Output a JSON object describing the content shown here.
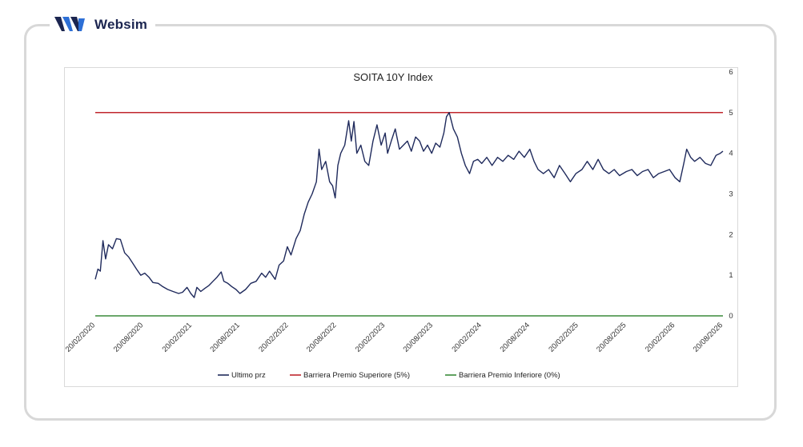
{
  "brand": {
    "name": "Websim",
    "logo_icon": "websim-logo-icon"
  },
  "chart_data": {
    "type": "line",
    "title": "SOITA 10Y Index",
    "xlabel": "",
    "ylabel": "",
    "x_range": [
      "2020-02-20",
      "2026-08-20"
    ],
    "ylim": [
      0,
      6
    ],
    "y_axis_position": "right",
    "y_ticks": [
      "0",
      "1",
      "2",
      "3",
      "4",
      "5",
      "6"
    ],
    "x_tick_labels": [
      "20/02/2020",
      "20/08/2020",
      "20/02/2021",
      "20/08/2021",
      "20/02/2022",
      "20/08/2022",
      "20/02/2023",
      "20/08/2023",
      "20/02/2024",
      "20/08/2024",
      "20/02/2025",
      "20/08/2025",
      "20/02/2026",
      "20/08/2026"
    ],
    "x_tick_rotation": "-45deg",
    "grid": false,
    "legend_position": "bottom",
    "series": [
      {
        "name": "Ultimo prz",
        "color": "#1f2a5c",
        "points": [
          [
            "2020-02-20",
            0.9
          ],
          [
            "2020-03-01",
            1.15
          ],
          [
            "2020-03-10",
            1.1
          ],
          [
            "2020-03-20",
            1.85
          ],
          [
            "2020-03-30",
            1.4
          ],
          [
            "2020-04-10",
            1.75
          ],
          [
            "2020-04-25",
            1.65
          ],
          [
            "2020-05-10",
            1.9
          ],
          [
            "2020-05-25",
            1.88
          ],
          [
            "2020-06-10",
            1.55
          ],
          [
            "2020-06-25",
            1.45
          ],
          [
            "2020-07-10",
            1.3
          ],
          [
            "2020-07-25",
            1.15
          ],
          [
            "2020-08-10",
            1.0
          ],
          [
            "2020-08-25",
            1.05
          ],
          [
            "2020-09-10",
            0.95
          ],
          [
            "2020-09-25",
            0.82
          ],
          [
            "2020-10-15",
            0.8
          ],
          [
            "2020-11-01",
            0.72
          ],
          [
            "2020-11-20",
            0.65
          ],
          [
            "2020-12-10",
            0.6
          ],
          [
            "2020-12-31",
            0.55
          ],
          [
            "2021-01-15",
            0.58
          ],
          [
            "2021-02-01",
            0.7
          ],
          [
            "2021-02-15",
            0.55
          ],
          [
            "2021-02-28",
            0.45
          ],
          [
            "2021-03-10",
            0.7
          ],
          [
            "2021-03-25",
            0.6
          ],
          [
            "2021-04-10",
            0.68
          ],
          [
            "2021-04-25",
            0.75
          ],
          [
            "2021-05-10",
            0.85
          ],
          [
            "2021-05-25",
            0.95
          ],
          [
            "2021-06-10",
            1.08
          ],
          [
            "2021-06-20",
            0.85
          ],
          [
            "2021-07-05",
            0.8
          ],
          [
            "2021-07-20",
            0.72
          ],
          [
            "2021-08-05",
            0.65
          ],
          [
            "2021-08-20",
            0.55
          ],
          [
            "2021-09-10",
            0.65
          ],
          [
            "2021-09-30",
            0.8
          ],
          [
            "2021-10-20",
            0.85
          ],
          [
            "2021-11-10",
            1.05
          ],
          [
            "2021-11-25",
            0.95
          ],
          [
            "2021-12-10",
            1.1
          ],
          [
            "2021-12-31",
            0.9
          ],
          [
            "2022-01-15",
            1.25
          ],
          [
            "2022-02-01",
            1.35
          ],
          [
            "2022-02-15",
            1.7
          ],
          [
            "2022-03-01",
            1.5
          ],
          [
            "2022-03-20",
            1.9
          ],
          [
            "2022-04-05",
            2.1
          ],
          [
            "2022-04-20",
            2.5
          ],
          [
            "2022-05-05",
            2.8
          ],
          [
            "2022-05-20",
            3.0
          ],
          [
            "2022-06-05",
            3.3
          ],
          [
            "2022-06-15",
            4.1
          ],
          [
            "2022-06-25",
            3.6
          ],
          [
            "2022-07-10",
            3.8
          ],
          [
            "2022-07-25",
            3.3
          ],
          [
            "2022-08-05",
            3.2
          ],
          [
            "2022-08-15",
            2.9
          ],
          [
            "2022-08-25",
            3.7
          ],
          [
            "2022-09-05",
            4.0
          ],
          [
            "2022-09-20",
            4.2
          ],
          [
            "2022-10-05",
            4.8
          ],
          [
            "2022-10-15",
            4.3
          ],
          [
            "2022-10-25",
            4.78
          ],
          [
            "2022-11-05",
            4.0
          ],
          [
            "2022-11-20",
            4.2
          ],
          [
            "2022-12-05",
            3.8
          ],
          [
            "2022-12-20",
            3.7
          ],
          [
            "2023-01-05",
            4.3
          ],
          [
            "2023-01-20",
            4.7
          ],
          [
            "2023-02-05",
            4.2
          ],
          [
            "2023-02-20",
            4.5
          ],
          [
            "2023-03-01",
            4.0
          ],
          [
            "2023-03-15",
            4.3
          ],
          [
            "2023-03-30",
            4.6
          ],
          [
            "2023-04-15",
            4.1
          ],
          [
            "2023-04-30",
            4.2
          ],
          [
            "2023-05-15",
            4.3
          ],
          [
            "2023-05-30",
            4.05
          ],
          [
            "2023-06-15",
            4.4
          ],
          [
            "2023-06-30",
            4.3
          ],
          [
            "2023-07-15",
            4.05
          ],
          [
            "2023-07-30",
            4.2
          ],
          [
            "2023-08-15",
            4.0
          ],
          [
            "2023-08-30",
            4.25
          ],
          [
            "2023-09-15",
            4.15
          ],
          [
            "2023-09-30",
            4.5
          ],
          [
            "2023-10-10",
            4.9
          ],
          [
            "2023-10-20",
            5.0
          ],
          [
            "2023-11-05",
            4.6
          ],
          [
            "2023-11-20",
            4.4
          ],
          [
            "2023-12-05",
            4.0
          ],
          [
            "2023-12-20",
            3.7
          ],
          [
            "2024-01-05",
            3.5
          ],
          [
            "2024-01-20",
            3.8
          ],
          [
            "2024-02-05",
            3.85
          ],
          [
            "2024-02-20",
            3.75
          ],
          [
            "2024-03-10",
            3.9
          ],
          [
            "2024-03-30",
            3.7
          ],
          [
            "2024-04-20",
            3.9
          ],
          [
            "2024-05-10",
            3.8
          ],
          [
            "2024-05-30",
            3.95
          ],
          [
            "2024-06-20",
            3.85
          ],
          [
            "2024-07-10",
            4.05
          ],
          [
            "2024-07-30",
            3.9
          ],
          [
            "2024-08-20",
            4.1
          ],
          [
            "2024-09-05",
            3.8
          ],
          [
            "2024-09-20",
            3.6
          ],
          [
            "2024-10-10",
            3.5
          ],
          [
            "2024-10-30",
            3.6
          ],
          [
            "2024-11-20",
            3.4
          ],
          [
            "2024-12-10",
            3.7
          ],
          [
            "2024-12-31",
            3.5
          ],
          [
            "2025-01-20",
            3.3
          ],
          [
            "2025-02-10",
            3.5
          ],
          [
            "2025-03-05",
            3.6
          ],
          [
            "2025-03-25",
            3.8
          ],
          [
            "2025-04-15",
            3.6
          ],
          [
            "2025-05-05",
            3.85
          ],
          [
            "2025-05-25",
            3.6
          ],
          [
            "2025-06-15",
            3.5
          ],
          [
            "2025-07-05",
            3.6
          ],
          [
            "2025-07-25",
            3.45
          ],
          [
            "2025-08-20",
            3.55
          ],
          [
            "2025-09-10",
            3.6
          ],
          [
            "2025-09-30",
            3.45
          ],
          [
            "2025-10-20",
            3.55
          ],
          [
            "2025-11-10",
            3.6
          ],
          [
            "2025-11-30",
            3.4
          ],
          [
            "2025-12-20",
            3.5
          ],
          [
            "2026-01-10",
            3.55
          ],
          [
            "2026-01-30",
            3.6
          ],
          [
            "2026-02-20",
            3.4
          ],
          [
            "2026-03-10",
            3.3
          ],
          [
            "2026-03-25",
            3.75
          ],
          [
            "2026-04-05",
            4.1
          ],
          [
            "2026-04-20",
            3.9
          ],
          [
            "2026-05-05",
            3.8
          ],
          [
            "2026-05-25",
            3.9
          ],
          [
            "2026-06-15",
            3.75
          ],
          [
            "2026-07-05",
            3.7
          ],
          [
            "2026-07-25",
            3.95
          ],
          [
            "2026-08-10",
            4.0
          ],
          [
            "2026-08-20",
            4.05
          ]
        ]
      },
      {
        "name": "Barriera Premio Superiore (5%)",
        "color": "#c0272d",
        "points": [
          [
            "2020-02-20",
            5
          ],
          [
            "2026-08-20",
            5
          ]
        ]
      },
      {
        "name": "Barriera Premio Inferiore (0%)",
        "color": "#3a8a3a",
        "points": [
          [
            "2020-02-20",
            0
          ],
          [
            "2026-08-20",
            0
          ]
        ]
      }
    ]
  }
}
